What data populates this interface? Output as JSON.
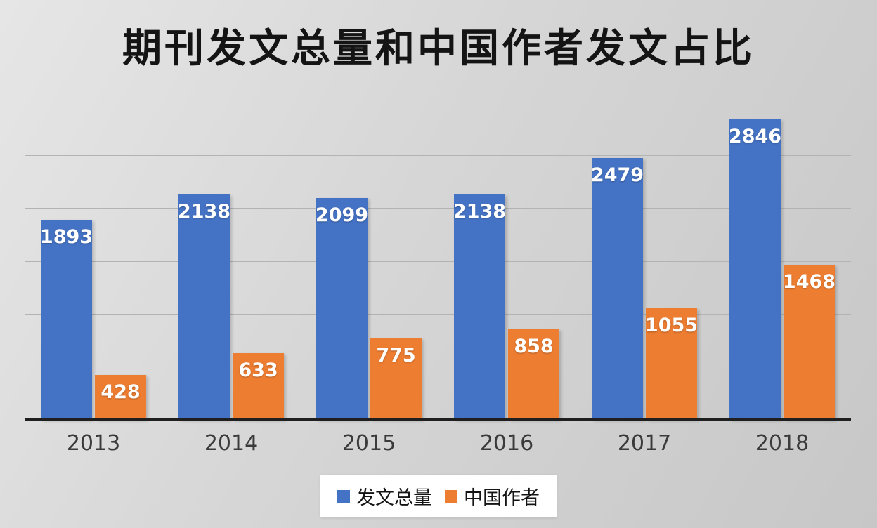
{
  "title": "期刊发文总量和中国作者发文占比",
  "chart_data": {
    "type": "bar",
    "title": "期刊发文总量和中国作者发文占比",
    "categories": [
      "2013",
      "2014",
      "2015",
      "2016",
      "2017",
      "2018"
    ],
    "series": [
      {
        "name": "发文总量",
        "color": "#4472c4",
        "values": [
          1893,
          2138,
          2099,
          2138,
          2479,
          2846
        ]
      },
      {
        "name": "中国作者",
        "color": "#ed7d31",
        "values": [
          428,
          633,
          775,
          858,
          1055,
          1468
        ]
      }
    ],
    "xlabel": "",
    "ylabel": "",
    "ylim": [
      0,
      3000
    ],
    "gridline_step": 500,
    "grid": true,
    "legend_position": "bottom",
    "data_labels": "inside-top",
    "data_label_color": "#ffffff"
  },
  "colors": {
    "background": "#d6d6d6",
    "axis": "#1f1f1f",
    "gridline": "#b3b3b3",
    "series_total": "#4472c4",
    "series_china": "#ed7d31"
  }
}
